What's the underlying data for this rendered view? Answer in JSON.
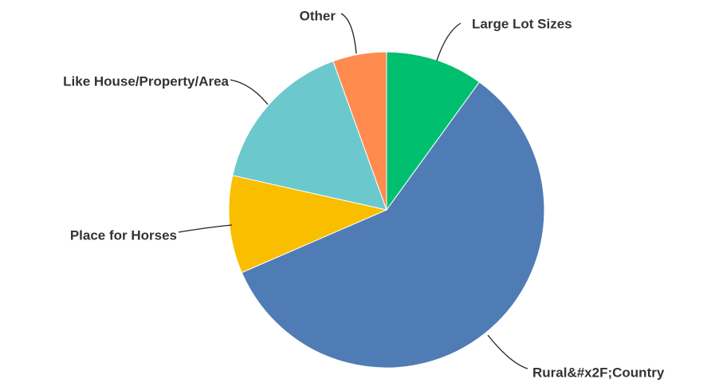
{
  "chart_data": {
    "type": "pie",
    "categories": [
      "Large Lot Sizes",
      "Rural&#x2F;Country",
      "Place for Horses",
      "Like House/Property/Area",
      "Other"
    ],
    "values": [
      10,
      58.5,
      10,
      16,
      5.5
    ],
    "colors": [
      "#00bf6f",
      "#507cb6",
      "#f9be00",
      "#6bc8cd",
      "#ff8b4f"
    ]
  }
}
